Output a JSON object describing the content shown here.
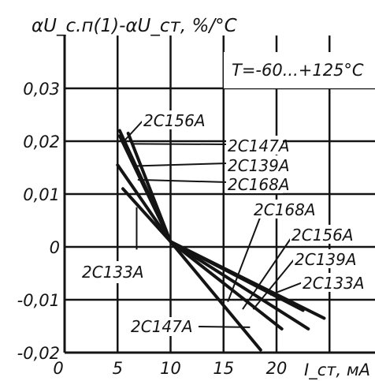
{
  "chart_data": {
    "type": "line",
    "ylabel": "αU_c.п(1)-αU_ст, %/°C",
    "xlabel": "I_ст, мA",
    "condition": "T=-60...+125°C",
    "xlim": [
      0,
      25
    ],
    "ylim": [
      -0.02,
      0.035
    ],
    "grid": true,
    "x_ticks": [
      "0",
      "5",
      "10",
      "15",
      "20"
    ],
    "x_tick_values": [
      0,
      5,
      10,
      15,
      20
    ],
    "y_ticks": [
      "0,03",
      "0,02",
      "0,01",
      "0",
      "-0,01",
      "-0,02"
    ],
    "y_tick_values": [
      0.03,
      0.02,
      0.01,
      0,
      -0.01,
      -0.02
    ],
    "series": [
      {
        "name": "2С156А",
        "x": [
          5.2,
          10,
          24.5
        ],
        "y": [
          0.022,
          0.001,
          -0.0135
        ]
      },
      {
        "name": "2С147А",
        "x": [
          5.2,
          10,
          18.5
        ],
        "y": [
          0.021,
          0.001,
          -0.0195
        ]
      },
      {
        "name": "2С139А",
        "x": [
          5.0,
          10,
          23.0
        ],
        "y": [
          0.0155,
          0.001,
          -0.0155
        ]
      },
      {
        "name": "2С168А",
        "x": [
          6.0,
          10,
          20.5
        ],
        "y": [
          0.0215,
          0.001,
          -0.0155
        ]
      },
      {
        "name": "2С133А",
        "x": [
          5.5,
          10,
          22.5
        ],
        "y": [
          0.011,
          0.001,
          -0.012
        ]
      }
    ],
    "annotations": [
      "2С156А",
      "2С147А",
      "2С139А",
      "2С168А",
      "2С168А",
      "2С156А",
      "2С139А",
      "2С133А",
      "2С133А",
      "2С147А"
    ]
  }
}
